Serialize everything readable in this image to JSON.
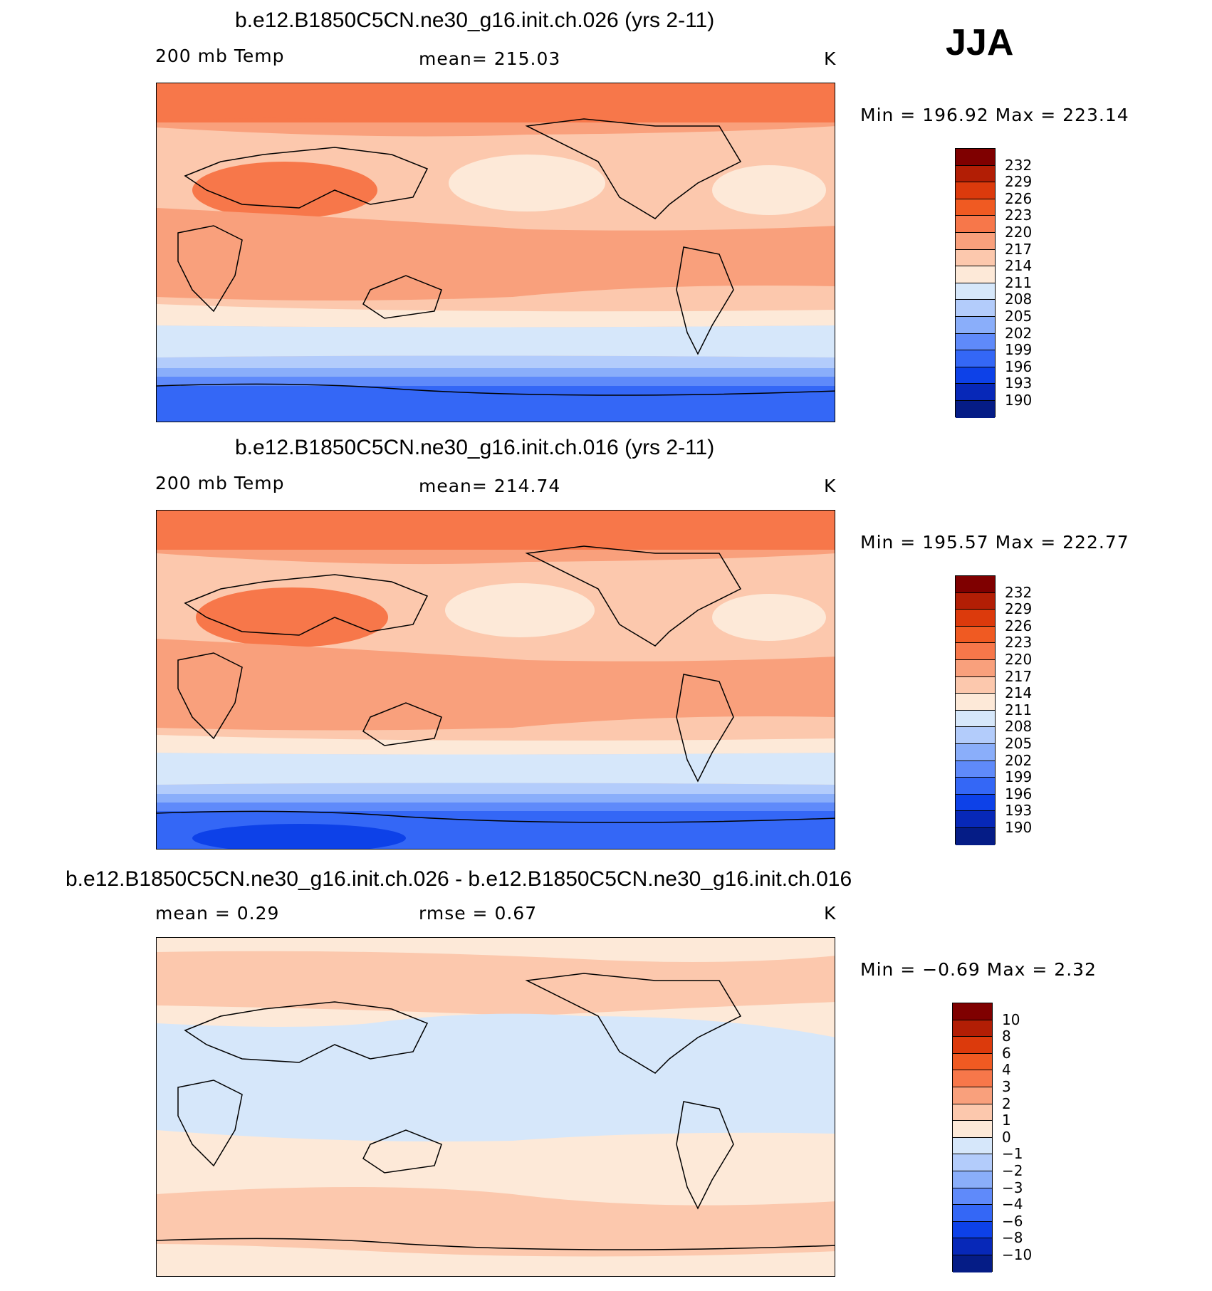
{
  "season": "JJA",
  "units": "K",
  "panels": [
    {
      "title": "b.e12.B1850C5CN.ne30_g16.init.ch.026 (yrs 2-11)",
      "left_label": "200 mb Temp",
      "center_label": "mean=  215.03",
      "right_label": "K",
      "minmax": "Min  =  196.92  Max  =  223.14"
    },
    {
      "title": "b.e12.B1850C5CN.ne30_g16.init.ch.016 (yrs 2-11)",
      "left_label": "200 mb Temp",
      "center_label": "mean=  214.74",
      "right_label": "K",
      "minmax": "Min  =  195.57  Max  =  222.77"
    },
    {
      "title": "b.e12.B1850C5CN.ne30_g16.init.ch.026 - b.e12.B1850C5CN.ne30_g16.init.ch.016",
      "left_label": "mean =      0.29",
      "center_label": "rmse =      0.67",
      "right_label": "K",
      "minmax": "Min  =    −0.69  Max  =      2.32"
    }
  ],
  "colorbars": {
    "abs": {
      "labels": [
        "232",
        "229",
        "226",
        "223",
        "220",
        "217",
        "214",
        "211",
        "208",
        "205",
        "202",
        "199",
        "196",
        "193",
        "190"
      ],
      "colors": [
        "#7f0000",
        "#b21e05",
        "#dc3a0c",
        "#f05a22",
        "#f7774a",
        "#f9a07c",
        "#fcc8ad",
        "#fde9d8",
        "#d6e7fa",
        "#b3ccfb",
        "#8aaefa",
        "#5f8afa",
        "#3467f6",
        "#0d41e8",
        "#0728b8",
        "#051c86"
      ]
    },
    "diff": {
      "labels": [
        "10",
        "8",
        "6",
        "4",
        "3",
        "2",
        "1",
        "0",
        "−1",
        "−2",
        "−3",
        "−4",
        "−6",
        "−8",
        "−10"
      ],
      "colors": [
        "#7f0000",
        "#b21e05",
        "#dc3a0c",
        "#f05a22",
        "#f7774a",
        "#f9a07c",
        "#fcc8ad",
        "#fde9d8",
        "#d6e7fa",
        "#b3ccfb",
        "#8aaefa",
        "#5f8afa",
        "#3467f6",
        "#0d41e8",
        "#0728b8",
        "#051c86"
      ]
    }
  }
}
